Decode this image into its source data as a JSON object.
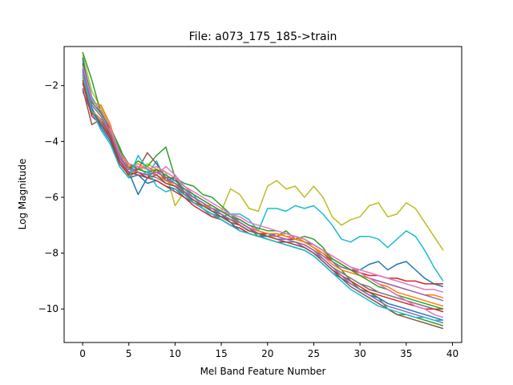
{
  "chart_data": {
    "type": "line",
    "title": "File: a073_175_185->train",
    "xlabel": "Mel Band Feature Number",
    "ylabel": "Log Magnitude",
    "xlim": [
      -2,
      41
    ],
    "ylim": [
      -11.2,
      -0.6
    ],
    "xticks": [
      0,
      5,
      10,
      15,
      20,
      25,
      30,
      35,
      40
    ],
    "yticks": [
      -10,
      -8,
      -6,
      -4,
      -2
    ],
    "grid": false,
    "legend": "none",
    "x": [
      0,
      1,
      2,
      3,
      4,
      5,
      6,
      7,
      8,
      9,
      10,
      11,
      12,
      13,
      14,
      15,
      16,
      17,
      18,
      19,
      20,
      21,
      22,
      23,
      24,
      25,
      26,
      27,
      28,
      29,
      30,
      31,
      32,
      33,
      34,
      35,
      36,
      37,
      38,
      39
    ],
    "series": [
      {
        "color": "#bcbd22",
        "values": [
          -0.9,
          -2.2,
          -2.8,
          -3.5,
          -4.4,
          -5.2,
          -5.0,
          -4.8,
          -5.0,
          -5.1,
          -6.3,
          -5.8,
          -6.0,
          -6.3,
          -6.5,
          -6.5,
          -5.7,
          -5.9,
          -6.4,
          -6.5,
          -5.6,
          -5.4,
          -5.7,
          -5.6,
          -6.0,
          -5.6,
          -6.0,
          -6.7,
          -7.0,
          -6.8,
          -6.7,
          -6.3,
          -6.2,
          -6.7,
          -6.6,
          -6.2,
          -6.4,
          -6.9,
          -7.4,
          -7.9
        ]
      },
      {
        "color": "#17becf",
        "values": [
          -1.1,
          -2.4,
          -3.0,
          -3.6,
          -4.3,
          -4.9,
          -4.9,
          -5.2,
          -4.7,
          -5.4,
          -5.4,
          -5.6,
          -5.9,
          -6.4,
          -6.7,
          -6.7,
          -6.6,
          -6.6,
          -6.8,
          -7.2,
          -6.4,
          -6.4,
          -6.5,
          -6.3,
          -6.4,
          -6.3,
          -6.6,
          -7.0,
          -7.5,
          -7.6,
          -7.4,
          -7.4,
          -7.5,
          -7.8,
          -7.5,
          -7.2,
          -7.4,
          -7.9,
          -8.5,
          -9.0
        ]
      },
      {
        "color": "#2ca02c",
        "values": [
          -0.8,
          -1.8,
          -3.0,
          -3.5,
          -4.2,
          -5.0,
          -4.7,
          -4.9,
          -4.5,
          -4.2,
          -5.3,
          -5.5,
          -5.6,
          -5.9,
          -6.0,
          -6.3,
          -6.6,
          -6.9,
          -7.1,
          -7.4,
          -7.3,
          -7.4,
          -7.2,
          -7.5,
          -7.4,
          -7.5,
          -7.8,
          -8.3,
          -8.6,
          -9.0,
          -9.3,
          -9.4,
          -9.6,
          -10.0,
          -10.2,
          -10.2,
          -10.3,
          -10.4,
          -10.5,
          -10.6
        ]
      },
      {
        "color": "#1f77b4",
        "values": [
          -1.0,
          -2.8,
          -3.4,
          -3.9,
          -4.6,
          -5.1,
          -5.9,
          -5.3,
          -5.0,
          -5.4,
          -5.3,
          -5.8,
          -6.0,
          -6.2,
          -6.5,
          -6.6,
          -6.9,
          -7.2,
          -7.3,
          -7.4,
          -7.4,
          -7.3,
          -7.4,
          -7.5,
          -7.6,
          -7.7,
          -7.9,
          -8.2,
          -8.4,
          -8.6,
          -8.6,
          -8.4,
          -8.3,
          -8.6,
          -8.4,
          -8.3,
          -8.6,
          -8.9,
          -9.1,
          -9.2
        ]
      },
      {
        "color": "#d62728",
        "values": [
          -1.2,
          -2.5,
          -2.9,
          -3.6,
          -4.4,
          -4.9,
          -5.1,
          -5.3,
          -5.0,
          -5.4,
          -5.5,
          -5.8,
          -6.2,
          -6.3,
          -6.4,
          -6.6,
          -6.8,
          -6.9,
          -7.1,
          -7.3,
          -7.3,
          -7.4,
          -7.5,
          -7.5,
          -7.6,
          -7.8,
          -8.0,
          -8.3,
          -8.5,
          -8.6,
          -8.7,
          -8.8,
          -8.8,
          -8.9,
          -8.9,
          -9.0,
          -9.0,
          -9.1,
          -9.1,
          -9.1
        ]
      },
      {
        "color": "#ff7f0e",
        "values": [
          -1.5,
          -2.6,
          -2.7,
          -3.4,
          -4.5,
          -5.3,
          -5.0,
          -4.9,
          -5.1,
          -5.3,
          -5.5,
          -5.9,
          -6.1,
          -6.3,
          -6.3,
          -6.5,
          -6.7,
          -7.0,
          -7.2,
          -7.3,
          -7.4,
          -7.4,
          -7.3,
          -7.4,
          -7.6,
          -7.8,
          -8.1,
          -8.4,
          -8.6,
          -8.7,
          -8.8,
          -8.9,
          -9.0,
          -9.1,
          -9.2,
          -9.3,
          -9.4,
          -9.5,
          -9.5,
          -9.6
        ]
      },
      {
        "color": "#9467bd",
        "values": [
          -2.2,
          -3.0,
          -3.3,
          -3.7,
          -4.5,
          -5.0,
          -5.0,
          -5.1,
          -5.2,
          -5.4,
          -5.5,
          -5.7,
          -6.0,
          -6.2,
          -6.4,
          -6.5,
          -6.7,
          -6.9,
          -7.1,
          -7.2,
          -7.3,
          -7.4,
          -7.5,
          -7.6,
          -7.7,
          -7.9,
          -8.1,
          -8.3,
          -8.5,
          -8.6,
          -8.8,
          -8.9,
          -9.0,
          -9.1,
          -9.2,
          -9.3,
          -9.4,
          -9.5,
          -9.6,
          -9.7
        ]
      },
      {
        "color": "#8c564b",
        "values": [
          -2.1,
          -3.4,
          -3.2,
          -3.8,
          -4.7,
          -5.1,
          -5.0,
          -4.4,
          -4.8,
          -5.3,
          -5.3,
          -5.9,
          -6.2,
          -6.4,
          -6.6,
          -6.7,
          -6.8,
          -7.0,
          -7.2,
          -7.3,
          -7.4,
          -7.5,
          -7.6,
          -7.6,
          -7.7,
          -7.9,
          -8.2,
          -8.5,
          -8.7,
          -8.9,
          -9.1,
          -9.3,
          -9.4,
          -9.5,
          -9.6,
          -9.7,
          -9.8,
          -9.9,
          -10.0,
          -10.0
        ]
      },
      {
        "color": "#e377c2",
        "values": [
          -1.3,
          -2.7,
          -3.1,
          -3.7,
          -4.6,
          -5.1,
          -4.9,
          -5.0,
          -5.2,
          -4.9,
          -5.2,
          -5.6,
          -5.9,
          -6.1,
          -6.3,
          -6.5,
          -6.6,
          -6.8,
          -7.0,
          -7.2,
          -7.3,
          -7.3,
          -7.4,
          -7.4,
          -7.5,
          -7.7,
          -7.9,
          -8.1,
          -8.3,
          -8.5,
          -8.6,
          -8.7,
          -8.8,
          -8.9,
          -9.0,
          -9.1,
          -9.2,
          -9.3,
          -9.3,
          -9.4
        ]
      },
      {
        "color": "#7f7f7f",
        "values": [
          -1.6,
          -2.9,
          -3.3,
          -3.9,
          -4.7,
          -5.2,
          -5.1,
          -5.2,
          -5.3,
          -5.5,
          -5.6,
          -5.8,
          -6.1,
          -6.3,
          -6.5,
          -6.7,
          -6.9,
          -7.0,
          -7.2,
          -7.3,
          -7.4,
          -7.5,
          -7.6,
          -7.6,
          -7.8,
          -8.0,
          -8.2,
          -8.5,
          -8.7,
          -8.9,
          -9.1,
          -9.2,
          -9.4,
          -9.5,
          -9.6,
          -9.7,
          -9.8,
          -9.9,
          -10.0,
          -10.1
        ]
      },
      {
        "color": "#1f77b4",
        "values": [
          -1.4,
          -2.8,
          -3.5,
          -4.0,
          -4.9,
          -5.3,
          -5.2,
          -5.5,
          -5.4,
          -5.6,
          -5.7,
          -6.0,
          -6.2,
          -6.4,
          -6.6,
          -6.8,
          -7.0,
          -7.1,
          -7.3,
          -7.4,
          -7.5,
          -7.6,
          -7.7,
          -7.8,
          -7.9,
          -8.1,
          -8.4,
          -8.7,
          -8.9,
          -9.1,
          -9.3,
          -9.5,
          -9.6,
          -9.8,
          -9.9,
          -10.0,
          -10.1,
          -10.2,
          -10.3,
          -10.4
        ]
      },
      {
        "color": "#ff7f0e",
        "values": [
          -1.7,
          -2.9,
          -3.2,
          -3.6,
          -4.4,
          -4.9,
          -4.8,
          -5.0,
          -5.2,
          -5.4,
          -5.6,
          -5.9,
          -6.1,
          -6.3,
          -6.4,
          -6.6,
          -6.8,
          -6.9,
          -7.1,
          -7.2,
          -7.3,
          -7.3,
          -7.4,
          -7.5,
          -7.6,
          -7.8,
          -8.0,
          -8.2,
          -8.4,
          -8.6,
          -8.8,
          -8.9,
          -9.1,
          -9.2,
          -9.4,
          -9.5,
          -9.6,
          -9.7,
          -9.8,
          -9.9
        ]
      },
      {
        "color": "#2ca02c",
        "values": [
          -1.2,
          -2.6,
          -3.0,
          -3.5,
          -4.3,
          -4.8,
          -5.0,
          -5.1,
          -5.0,
          -5.2,
          -5.4,
          -5.7,
          -5.9,
          -6.1,
          -6.3,
          -6.5,
          -6.7,
          -6.8,
          -7.0,
          -7.1,
          -7.2,
          -7.2,
          -7.3,
          -7.4,
          -7.5,
          -7.7,
          -7.9,
          -8.2,
          -8.4,
          -8.6,
          -8.8,
          -9.0,
          -9.2,
          -9.3,
          -9.5,
          -9.6,
          -9.7,
          -9.8,
          -9.9,
          -10.0
        ]
      },
      {
        "color": "#d62728",
        "values": [
          -1.9,
          -3.1,
          -3.4,
          -3.9,
          -4.8,
          -5.2,
          -5.1,
          -5.3,
          -5.4,
          -5.6,
          -5.8,
          -6.0,
          -6.3,
          -6.5,
          -6.7,
          -6.8,
          -7.0,
          -7.1,
          -7.3,
          -7.4,
          -7.5,
          -7.6,
          -7.6,
          -7.7,
          -7.8,
          -8.0,
          -8.3,
          -8.6,
          -8.8,
          -9.0,
          -9.2,
          -9.4,
          -9.5,
          -9.6,
          -9.7,
          -9.8,
          -9.9,
          -10.0,
          -10.0,
          -10.1
        ]
      },
      {
        "color": "#9467bd",
        "values": [
          -1.5,
          -2.7,
          -3.1,
          -3.7,
          -4.6,
          -5.0,
          -5.1,
          -5.2,
          -5.1,
          -5.3,
          -5.5,
          -5.8,
          -6.0,
          -6.2,
          -6.4,
          -6.6,
          -6.8,
          -6.9,
          -7.1,
          -7.3,
          -7.4,
          -7.5,
          -7.5,
          -7.6,
          -7.7,
          -7.9,
          -8.2,
          -8.5,
          -8.8,
          -9.1,
          -9.3,
          -9.5,
          -9.7,
          -9.9,
          -10.0,
          -10.1,
          -10.2,
          -10.3,
          -10.4,
          -10.5
        ]
      },
      {
        "color": "#8c564b",
        "values": [
          -1.8,
          -3.0,
          -3.4,
          -3.8,
          -4.7,
          -5.1,
          -5.2,
          -5.3,
          -5.2,
          -5.5,
          -5.6,
          -5.9,
          -6.1,
          -6.3,
          -6.5,
          -6.7,
          -6.9,
          -7.0,
          -7.2,
          -7.3,
          -7.4,
          -7.5,
          -7.6,
          -7.7,
          -7.8,
          -8.0,
          -8.3,
          -8.6,
          -8.9,
          -9.2,
          -9.4,
          -9.6,
          -9.8,
          -10.0,
          -10.2,
          -10.3,
          -10.4,
          -10.5,
          -10.6,
          -10.7
        ]
      },
      {
        "color": "#e377c2",
        "values": [
          -1.3,
          -2.5,
          -2.9,
          -3.5,
          -4.4,
          -4.8,
          -4.9,
          -5.0,
          -4.9,
          -5.1,
          -5.3,
          -5.6,
          -5.8,
          -6.0,
          -6.2,
          -6.4,
          -6.6,
          -6.7,
          -6.9,
          -7.0,
          -7.1,
          -7.2,
          -7.3,
          -7.4,
          -7.5,
          -7.7,
          -7.9,
          -8.1,
          -8.3,
          -8.5,
          -8.7,
          -8.9,
          -9.1,
          -9.3,
          -9.5,
          -9.7,
          -9.9,
          -10.0,
          -10.2,
          -10.3
        ]
      },
      {
        "color": "#17becf",
        "values": [
          -1.6,
          -2.9,
          -3.6,
          -4.1,
          -4.9,
          -5.3,
          -4.5,
          -5.0,
          -5.6,
          -5.8,
          -5.7,
          -5.9,
          -6.2,
          -6.4,
          -6.6,
          -6.8,
          -7.0,
          -7.2,
          -7.3,
          -7.4,
          -7.5,
          -7.6,
          -7.7,
          -7.8,
          -7.9,
          -8.1,
          -8.4,
          -8.7,
          -9.0,
          -9.3,
          -9.5,
          -9.7,
          -9.9,
          -10.0,
          -10.1,
          -10.2,
          -10.3,
          -10.3,
          -10.4,
          -10.4
        ]
      }
    ]
  }
}
